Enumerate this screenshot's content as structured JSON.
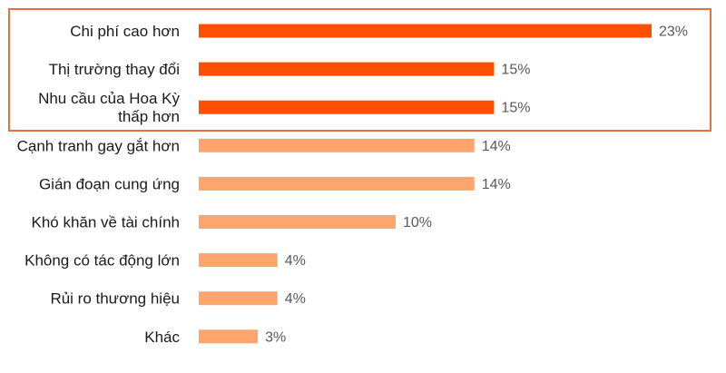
{
  "chart_data": {
    "type": "bar",
    "orientation": "horizontal",
    "categories": [
      [
        "Chi phí cao hơn"
      ],
      [
        "Thị trường thay đổi"
      ],
      [
        "Nhu cầu của Hoa Kỳ",
        "thấp hơn"
      ],
      [
        "Cạnh tranh gay gắt hơn"
      ],
      [
        "Gián đoạn cung ứng"
      ],
      [
        "Khó khăn về tài chính"
      ],
      [
        "Không có tác động lớn"
      ],
      [
        "Rủi ro thương hiệu"
      ],
      [
        "Khác"
      ]
    ],
    "values": [
      23,
      15,
      15,
      14,
      14,
      10,
      4,
      4,
      3
    ],
    "value_labels": [
      "23%",
      "15%",
      "15%",
      "14%",
      "14%",
      "10%",
      "4%",
      "4%",
      "3%"
    ],
    "highlighted": [
      true,
      true,
      true,
      false,
      false,
      false,
      false,
      false,
      false
    ],
    "xlim": [
      0,
      23
    ],
    "grid": false,
    "colors": {
      "highlight": "#fe5000",
      "normal": "#fea46d",
      "frame": "#e8703a"
    }
  }
}
